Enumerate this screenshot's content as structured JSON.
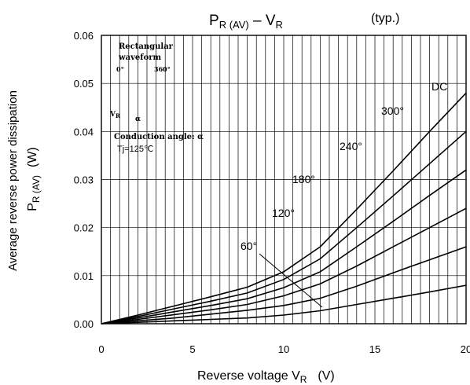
{
  "chart_data": {
    "type": "line",
    "title": {
      "main": "P",
      "main_sub": "R (AV)",
      "sep": " – V",
      "sep_sub": "R",
      "note": "(typ.)"
    },
    "xlabel": {
      "text": "Reverse voltage  V",
      "sub": "R",
      "unit": "(V)"
    },
    "ylabel": {
      "line1": "Average reverse power dissipation",
      "line2": "P",
      "line2_sub": "R (AV)",
      "line2_unit": "(W)"
    },
    "xlim": [
      0,
      20
    ],
    "ylim": [
      0,
      0.06
    ],
    "x_ticks": [
      0,
      5,
      10,
      15,
      20
    ],
    "x_tick_labels": [
      "0",
      "5",
      "10",
      "15",
      "20"
    ],
    "y_ticks": [
      0,
      0.01,
      0.02,
      0.03,
      0.04,
      0.05,
      0.06
    ],
    "y_tick_labels": [
      "0.00",
      "0.01",
      "0.02",
      "0.03",
      "0.04",
      "0.05",
      "0.06"
    ],
    "grid": true,
    "series": [
      {
        "name": "60°",
        "x": [
          0,
          2,
          4,
          6,
          8,
          10,
          12,
          14,
          16,
          18,
          20
        ],
        "y": [
          0,
          0.0003,
          0.0006,
          0.0009,
          0.0012,
          0.0018,
          0.0027,
          0.004,
          0.0053,
          0.0066,
          0.008
        ]
      },
      {
        "name": "120°",
        "x": [
          0,
          2,
          4,
          6,
          8,
          10,
          12,
          14,
          16,
          18,
          20
        ],
        "y": [
          0,
          0.0006,
          0.0012,
          0.002,
          0.0028,
          0.0038,
          0.0053,
          0.0078,
          0.0106,
          0.0133,
          0.016
        ]
      },
      {
        "name": "180°",
        "x": [
          0,
          2,
          4,
          6,
          8,
          10,
          12,
          14,
          16,
          18,
          20
        ],
        "y": [
          0,
          0.0009,
          0.0019,
          0.0029,
          0.004,
          0.0058,
          0.0083,
          0.012,
          0.016,
          0.02,
          0.024
        ]
      },
      {
        "name": "240°",
        "x": [
          0,
          2,
          4,
          6,
          8,
          10,
          12,
          14,
          16,
          18,
          20
        ],
        "y": [
          0,
          0.0012,
          0.0025,
          0.0038,
          0.0052,
          0.0075,
          0.0108,
          0.016,
          0.0213,
          0.0267,
          0.032
        ]
      },
      {
        "name": "300°",
        "x": [
          0,
          2,
          4,
          6,
          8,
          10,
          12,
          14,
          16,
          18,
          20
        ],
        "y": [
          0,
          0.0015,
          0.0031,
          0.0047,
          0.0064,
          0.0092,
          0.0135,
          0.02,
          0.0266,
          0.0333,
          0.04
        ]
      },
      {
        "name": "DC",
        "x": [
          0,
          2,
          4,
          6,
          8,
          10,
          12,
          14,
          16,
          18,
          20
        ],
        "y": [
          0,
          0.0018,
          0.0037,
          0.0056,
          0.0076,
          0.0108,
          0.016,
          0.0238,
          0.0318,
          0.04,
          0.048
        ]
      }
    ],
    "annotations": {
      "waveform_line1": "Rectangular",
      "waveform_line2": "waveform",
      "angle_0": "0°",
      "angle_360": "360°",
      "vr": "V",
      "vr_sub": "R",
      "alpha": "α",
      "conduction": "Conduction angle: α",
      "tj": "Tj=125℃"
    }
  }
}
